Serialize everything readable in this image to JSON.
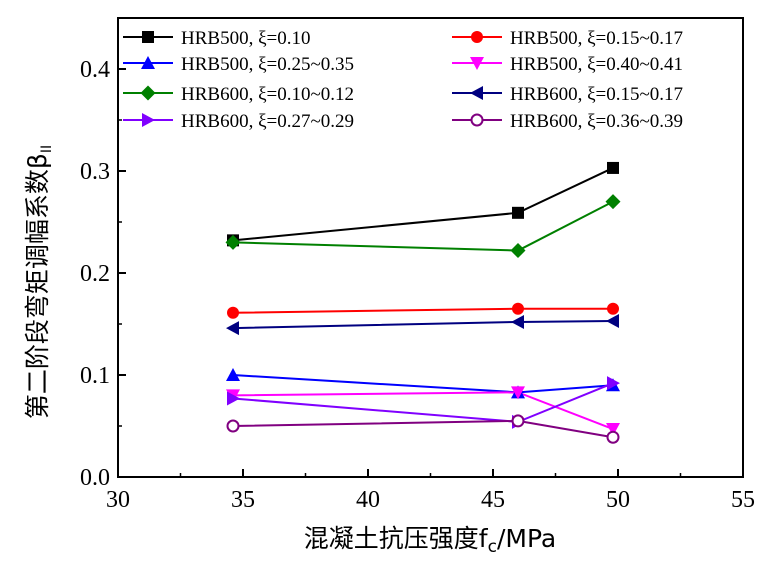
{
  "chart_data": {
    "type": "line",
    "xlabel": "混凝土抗压强度f",
    "xlabel_sub": "c",
    "xlabel_unit": "/MPa",
    "ylabel": "第二阶段弯矩调幅系数β",
    "ylabel_sub": "II",
    "xlim": [
      30,
      55
    ],
    "ylim": [
      0.0,
      0.45
    ],
    "xticks": [
      30,
      35,
      40,
      45,
      50,
      55
    ],
    "yticks": [
      0.0,
      0.1,
      0.2,
      0.3,
      0.4
    ],
    "xtick_labels": [
      "30",
      "35",
      "40",
      "45",
      "50",
      "55"
    ],
    "ytick_labels": [
      "0.0",
      "0.1",
      "0.2",
      "0.3",
      "0.4"
    ],
    "legend_position": "top",
    "series": [
      {
        "name": "HRB500, ξ=0.10",
        "color": "#000000",
        "marker": "square-filled",
        "x": [
          34.6,
          46.0,
          49.8
        ],
        "y": [
          0.232,
          0.259,
          0.303
        ]
      },
      {
        "name": "HRB500, ξ=0.15~0.17",
        "color": "#ff0000",
        "marker": "circle-filled",
        "x": [
          34.6,
          46.0,
          49.8
        ],
        "y": [
          0.161,
          0.165,
          0.165
        ]
      },
      {
        "name": "HRB500, ξ=0.25~0.35",
        "color": "#0000ff",
        "marker": "triangle-up",
        "x": [
          34.6,
          46.0,
          49.8
        ],
        "y": [
          0.1,
          0.083,
          0.09
        ]
      },
      {
        "name": "HRB500, ξ=0.40~0.41",
        "color": "#ff00ff",
        "marker": "triangle-down",
        "x": [
          34.6,
          46.0,
          49.8
        ],
        "y": [
          0.08,
          0.083,
          0.047
        ]
      },
      {
        "name": "HRB600, ξ=0.10~0.12",
        "color": "#008000",
        "marker": "diamond",
        "x": [
          34.6,
          46.0,
          49.8
        ],
        "y": [
          0.23,
          0.222,
          0.27
        ]
      },
      {
        "name": "HRB600, ξ=0.15~0.17",
        "color": "#000080",
        "marker": "triangle-left",
        "x": [
          34.6,
          46.0,
          49.8
        ],
        "y": [
          0.146,
          0.152,
          0.153
        ]
      },
      {
        "name": "HRB600, ξ=0.27~0.29",
        "color": "#8000ff",
        "marker": "triangle-right",
        "x": [
          34.6,
          46.0,
          49.8
        ],
        "y": [
          0.077,
          0.054,
          0.092
        ]
      },
      {
        "name": "HRB600, ξ=0.36~0.39",
        "color": "#800080",
        "marker": "circle-open",
        "x": [
          34.6,
          46.0,
          49.8
        ],
        "y": [
          0.05,
          0.055,
          0.039
        ]
      }
    ]
  }
}
